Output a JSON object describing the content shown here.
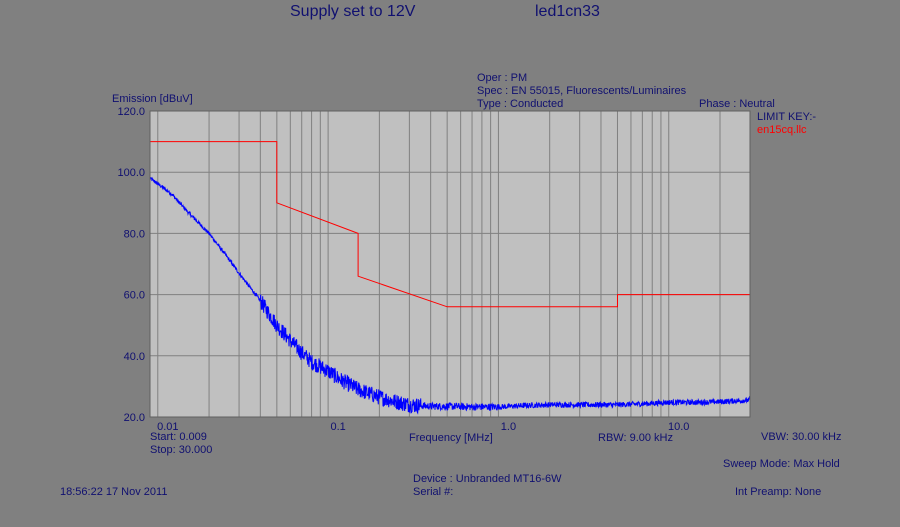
{
  "header": {
    "title_left": "Supply set to 12V",
    "title_right": "led1cn33"
  },
  "info": {
    "oper": "Oper : PM",
    "spec": "Spec : EN 55015, Fluorescents/Luminaires",
    "type": "Type : Conducted",
    "phase": "Phase : Neutral",
    "limit_key": "LIMIT KEY:-",
    "limit_file": "en15cq.llc"
  },
  "footer": {
    "start": "Start: 0.009",
    "stop": "Stop: 30.000",
    "rbw": "RBW: 9.00 kHz",
    "vbw": "VBW: 30.00 kHz",
    "sweep_mode": "Sweep Mode: Max Hold",
    "device": "Device : Unbranded MT16-6W",
    "serial": "Serial #:",
    "timestamp": "18:56:22 17 Nov 2011",
    "preamp": "Int Preamp: None"
  },
  "colors": {
    "background": "#808080",
    "plot_area": "#c0c0c0",
    "grid": "#808080",
    "text": "#101070",
    "limit": "#ff0000",
    "trace": "#0000ff"
  },
  "chart_data": {
    "type": "line",
    "xlabel": "Frequency [MHz]",
    "ylabel": "Emission [dBuV]",
    "xscale": "log",
    "xlim": [
      0.009,
      30
    ],
    "ylim": [
      20,
      120
    ],
    "xticks": [
      {
        "value": 0.01,
        "label": "0.01"
      },
      {
        "value": 0.1,
        "label": "0.1"
      },
      {
        "value": 1,
        "label": "1.0"
      },
      {
        "value": 10,
        "label": "10.0"
      }
    ],
    "yticks": [
      {
        "value": 120,
        "label": "120.0"
      },
      {
        "value": 100,
        "label": "100.0"
      },
      {
        "value": 80,
        "label": "80.0"
      },
      {
        "value": 60,
        "label": "60.0"
      },
      {
        "value": 40,
        "label": "40.0"
      },
      {
        "value": 20,
        "label": "20.0"
      }
    ],
    "grid": true,
    "series": [
      {
        "name": "en15cq.llc",
        "color": "#ff0000",
        "x": [
          0.009,
          0.05,
          0.05,
          0.15,
          0.15,
          0.5,
          5,
          5,
          30
        ],
        "y": [
          110,
          110,
          90,
          80,
          66,
          56,
          56,
          60,
          60
        ]
      },
      {
        "color": "#0000ff",
        "noisy": true,
        "x": [
          0.009,
          0.012,
          0.015,
          0.02,
          0.025,
          0.03,
          0.04,
          0.05,
          0.06,
          0.07,
          0.08,
          0.1,
          0.12,
          0.15,
          0.2,
          0.25,
          0.3,
          0.4,
          0.5,
          0.7,
          1.0,
          1.5,
          2.0,
          3.0,
          5.0,
          7.0,
          10.0,
          15.0,
          20.0,
          30.0
        ],
        "y": [
          98,
          93,
          87,
          80,
          73,
          67,
          58,
          50,
          45,
          41,
          38,
          35,
          32,
          29,
          26.5,
          25,
          24,
          23.5,
          23.5,
          23.3,
          23.3,
          23.8,
          24,
          24,
          24,
          24.3,
          24.8,
          24.8,
          25,
          25.5
        ]
      }
    ]
  }
}
